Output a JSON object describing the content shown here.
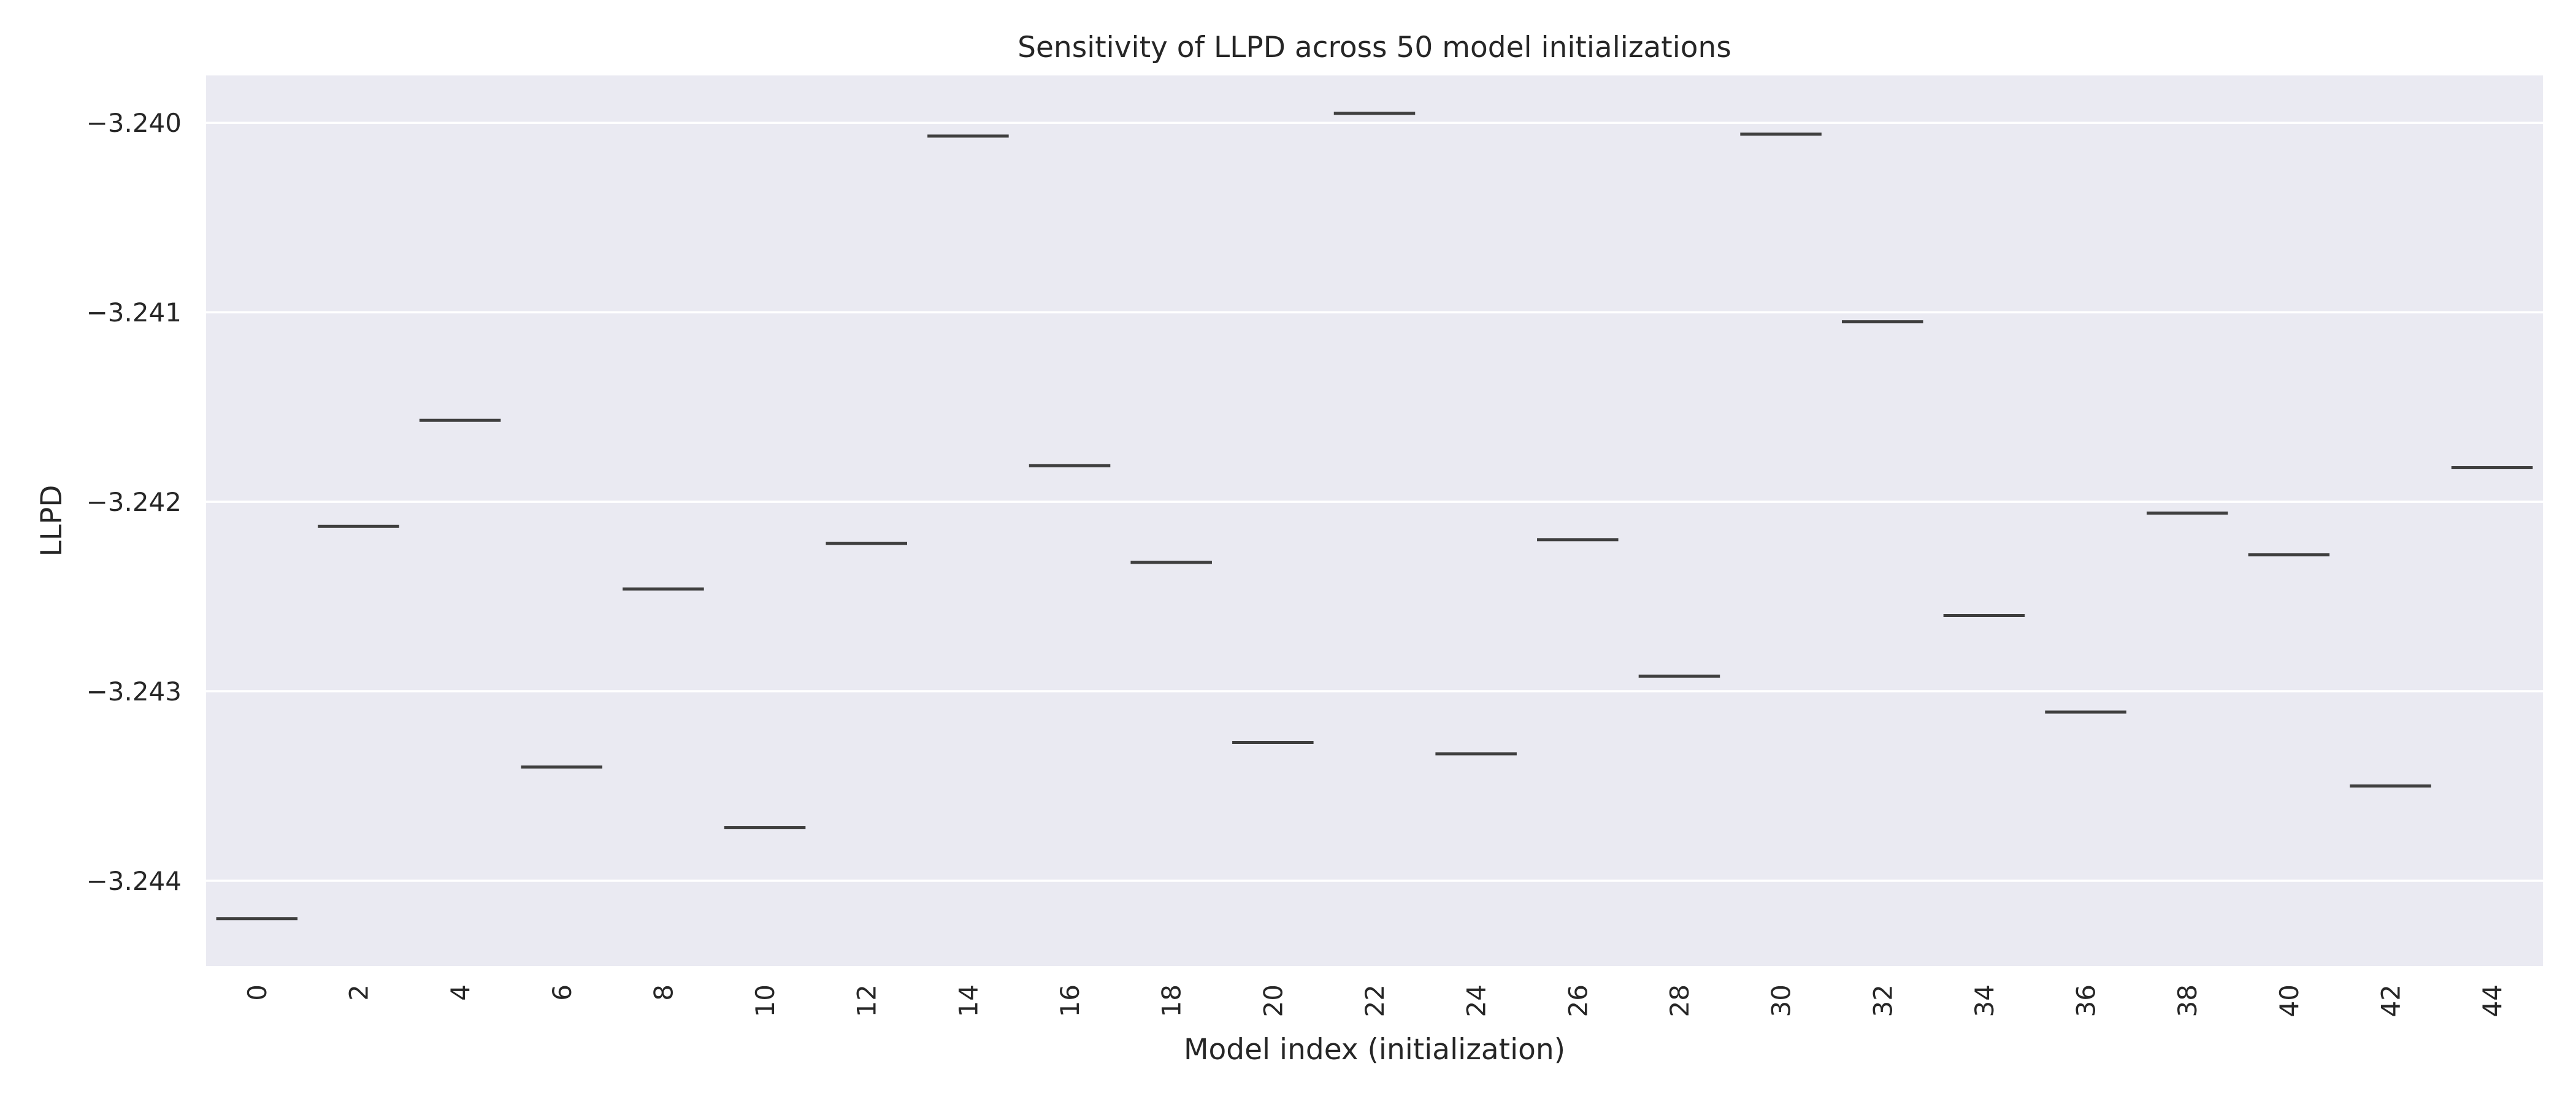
{
  "chart_data": {
    "type": "box",
    "title": "Sensitivity of LLPD across 50 model initializations",
    "xlabel": "Model index (initialization)",
    "ylabel": "LLPD",
    "categories": [
      "0",
      "2",
      "4",
      "6",
      "8",
      "10",
      "12",
      "14",
      "16",
      "18",
      "20",
      "22",
      "24",
      "26",
      "28",
      "30",
      "32",
      "34",
      "36",
      "38",
      "40",
      "42",
      "44"
    ],
    "values": [
      -3.2442,
      -3.24213,
      -3.24157,
      -3.2434,
      -3.24246,
      -3.24372,
      -3.24222,
      -3.24007,
      -3.24181,
      -3.24232,
      -3.24327,
      -3.23995,
      -3.24333,
      -3.2422,
      -3.24292,
      -3.24006,
      -3.24105,
      -3.2426,
      -3.24311,
      -3.24206,
      -3.24228,
      -3.2435,
      -3.24182
    ],
    "ylim": [
      -3.24445,
      -3.23975
    ],
    "yticks": [
      -3.24,
      -3.241,
      -3.242,
      -3.243,
      -3.244
    ],
    "ytick_labels": [
      "−3.240",
      "−3.241",
      "−3.242",
      "−3.243",
      "−3.244"
    ],
    "grid": true,
    "legend": "none",
    "colors": {
      "plot_background": "#eaeaf2",
      "grid": "#ffffff",
      "median_line": "#3f3f3f",
      "text": "#262626"
    }
  }
}
